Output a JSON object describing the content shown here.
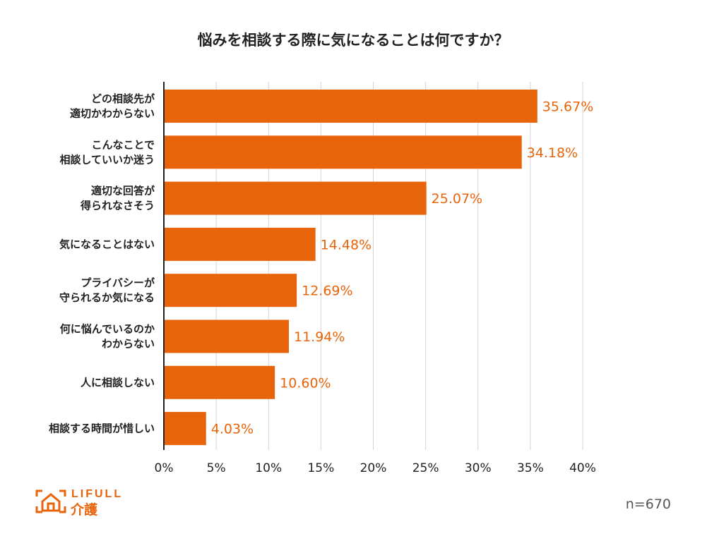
{
  "chart_data": {
    "type": "bar",
    "orientation": "horizontal",
    "title": "悩みを相談する際に気になることは何ですか？",
    "categories": [
      [
        "どの相談先が",
        "適切かわからない"
      ],
      [
        "こんなことで",
        "相談していいか迷う"
      ],
      [
        "適切な回答が",
        "得られなさそう"
      ],
      [
        "気になることはない"
      ],
      [
        "プライバシーが",
        "守られるか気になる"
      ],
      [
        "何に悩んでいるのか",
        "わからない"
      ],
      [
        "人に相談しない"
      ],
      [
        "相談する時間が惜しい"
      ]
    ],
    "values": [
      35.67,
      34.18,
      25.07,
      14.48,
      12.69,
      11.94,
      10.6,
      4.03
    ],
    "value_labels": [
      "35.67%",
      "34.18%",
      "25.07%",
      "14.48%",
      "12.69%",
      "11.94%",
      "10.60%",
      "4.03%"
    ],
    "xlim": [
      0,
      40
    ],
    "xticks": [
      0,
      5,
      10,
      15,
      20,
      25,
      30,
      35,
      40
    ],
    "xtick_labels": [
      "0%",
      "5%",
      "10%",
      "15%",
      "20%",
      "25%",
      "30%",
      "35%",
      "40%"
    ],
    "grid": true,
    "bar_color": "#e8640b"
  },
  "footer": {
    "sample_size": "n=670",
    "logo_text": "LIFULL",
    "logo_sub": "介護",
    "logo_icon": "house-bracket-icon"
  }
}
